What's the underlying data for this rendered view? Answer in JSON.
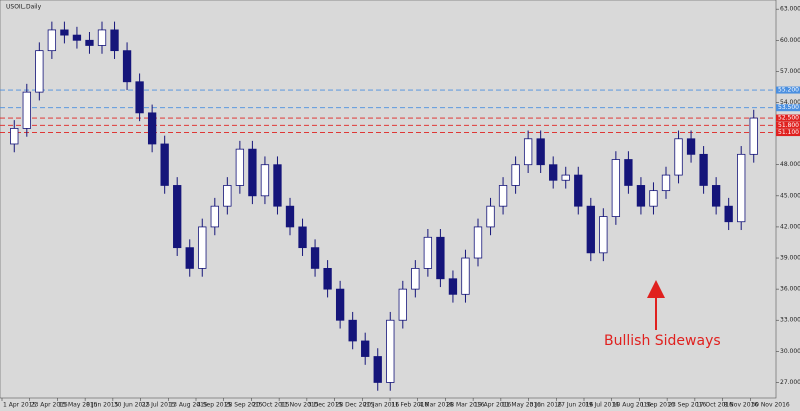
{
  "chart_data": {
    "type": "candlestick",
    "title": "USOIL,Daily",
    "annotation": "Bullish Sideways",
    "color": "#15157a",
    "open": [
      50,
      51.5,
      55,
      59,
      61,
      60.5,
      60,
      59.5,
      61,
      59,
      56,
      53,
      50,
      46,
      40,
      38,
      42,
      44,
      46,
      49.5,
      45,
      48,
      44,
      42,
      40,
      38,
      36,
      33,
      31,
      29.5,
      27,
      33,
      36,
      38,
      41,
      37,
      35.5,
      39,
      42,
      44,
      46,
      48,
      50.5,
      48,
      46.5,
      47,
      44,
      39.5,
      43,
      48.5,
      46,
      44,
      45.5,
      47,
      50.5,
      49,
      46,
      44,
      42.5,
      49
    ],
    "high": [
      52.3,
      55.8,
      59.8,
      61.8,
      61.8,
      61.3,
      60.8,
      61.8,
      61.8,
      59.8,
      56.8,
      53.8,
      50.8,
      46.8,
      40.8,
      42.8,
      44.8,
      46.8,
      50.3,
      50.3,
      48.8,
      48.8,
      44.8,
      42.8,
      40.8,
      38.8,
      36.8,
      33.8,
      31.8,
      30.3,
      33.8,
      36.8,
      38.8,
      41.8,
      41.8,
      37.8,
      39.8,
      42.8,
      44.8,
      46.8,
      48.8,
      51.3,
      51.3,
      48.8,
      47.8,
      47.8,
      44.8,
      43.8,
      49.3,
      49.3,
      46.8,
      46.3,
      47.8,
      51.3,
      51.3,
      49.8,
      46.8,
      44.8,
      49.8,
      53.3
    ],
    "low": [
      49.2,
      50.7,
      54.2,
      58.2,
      59.7,
      59.2,
      58.7,
      58.7,
      58.2,
      55.2,
      52.2,
      49.2,
      45.2,
      39.2,
      37.2,
      37.2,
      41.2,
      43.2,
      45.2,
      44.2,
      44.2,
      43.2,
      41.2,
      39.2,
      37.2,
      35.2,
      32.2,
      30.2,
      28.7,
      26.2,
      26.2,
      32.2,
      35.2,
      37.2,
      36.2,
      34.7,
      34.7,
      38.2,
      41.2,
      43.2,
      45.2,
      47.2,
      47.2,
      45.7,
      45.7,
      43.2,
      38.7,
      38.7,
      42.2,
      45.2,
      43.2,
      43.2,
      44.7,
      46.2,
      48.2,
      45.2,
      43.2,
      41.7,
      41.7,
      48.2
    ],
    "close": [
      51.5,
      55,
      59,
      61,
      60.5,
      60,
      59.5,
      61,
      59,
      56,
      53,
      50,
      46,
      40,
      38,
      42,
      44,
      46,
      49.5,
      45,
      48,
      44,
      42,
      40,
      38,
      36,
      33,
      31,
      29.5,
      27,
      33,
      36,
      38,
      41,
      37,
      35.5,
      39,
      42,
      44,
      46,
      48,
      50.5,
      48,
      46.5,
      47,
      44,
      39.5,
      43,
      48.5,
      46,
      44,
      45.5,
      47,
      50.5,
      49,
      46,
      44,
      42.5,
      49,
      52.5
    ],
    "xtick_labels": [
      "1 Apr 2015",
      "23 Apr 2015",
      "15 May 2015",
      "8 Jun 2015",
      "30 Jun 2015",
      "22 Jul 2015",
      "13 Aug 2015",
      "4 Sep 2015",
      "28 Sep 2015",
      "20 Oct 2015",
      "11 Nov 2015",
      "3 Dec 2015",
      "28 Dec 2015",
      "20 Jan 2016",
      "11 Feb 2016",
      "4 Mar 2016",
      "28 Mar 2016",
      "19 Apr 2016",
      "11 May 2016",
      "3 Jun 2016",
      "27 Jun 2016",
      "19 Jul 2016",
      "10 Aug 2016",
      "1 Sep 2016",
      "23 Sep 2016",
      "17 Oct 2016",
      "8 Nov 2016",
      "30 Nov 2016"
    ],
    "ylim": [
      25.5,
      63.5
    ],
    "yticks": [
      {
        "value": 27,
        "label": "27.000"
      },
      {
        "value": 30,
        "label": "30.000"
      },
      {
        "value": 33,
        "label": "33.000"
      },
      {
        "value": 36,
        "label": "36.000"
      },
      {
        "value": 39,
        "label": "39.000"
      },
      {
        "value": 42,
        "label": "42.000"
      },
      {
        "value": 45,
        "label": "45.000"
      },
      {
        "value": 48,
        "label": "48.000"
      },
      {
        "value": 51,
        "label": "51.000"
      },
      {
        "value": 54,
        "label": "54.000"
      },
      {
        "value": 57,
        "label": "57.000"
      },
      {
        "value": 60,
        "label": "60.000"
      },
      {
        "value": 63,
        "label": "63.000"
      }
    ],
    "levels": [
      {
        "value": 55.2,
        "label": "55.200",
        "color": "#4a8fe0"
      },
      {
        "value": 53.5,
        "label": "53.500",
        "color": "#4a8fe0"
      },
      {
        "value": 52.5,
        "label": "52.500",
        "color": "#e0211f"
      },
      {
        "value": 51.8,
        "label": "51.800",
        "color": "#e0211f"
      },
      {
        "value": 51.1,
        "label": "51.100",
        "color": "#e0211f"
      }
    ]
  }
}
